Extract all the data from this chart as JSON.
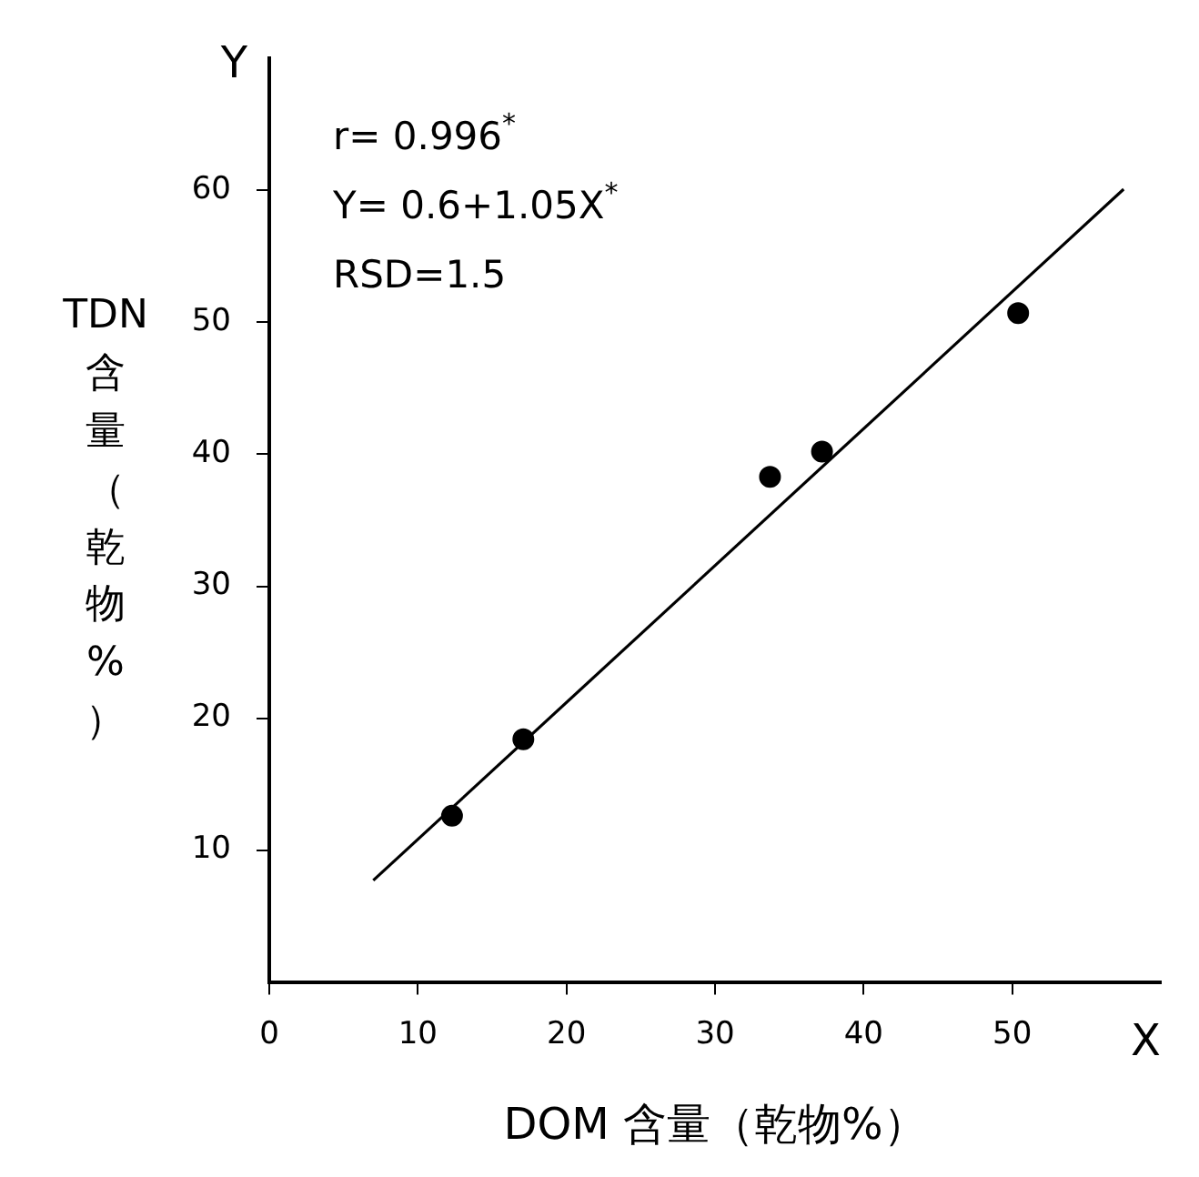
{
  "chart_data": {
    "type": "scatter",
    "xlabel": "DOM 含量（乾物%）",
    "ylabel": "TDN 含量（乾物%）",
    "annotations": [
      "r= 0.996$^{*}$",
      "Y= 0.6+1.05X$^{*}$",
      "RSD=1.5",
      "Y",
      "X"
    ],
    "series": [
      {
        "marker": "circle",
        "color": "#000000",
        "x": [
          12.3,
          17.1,
          33.7,
          37.2,
          50.4
        ],
        "values": [
          12.6,
          18.4,
          38.3,
          40.2,
          50.7
        ]
      },
      {
        "type": "line",
        "marker": "none",
        "color": "#000000",
        "x": [
          7,
          57.5
        ],
        "values": [
          7.7,
          60.1
        ]
      }
    ],
    "xlim": [
      0,
      60
    ],
    "ylim": [
      0,
      70
    ],
    "xticks": [
      0,
      10,
      20,
      30,
      40,
      50
    ],
    "yticks": [
      10,
      20,
      30,
      40,
      50,
      60
    ],
    "grid": false,
    "legend": false
  }
}
